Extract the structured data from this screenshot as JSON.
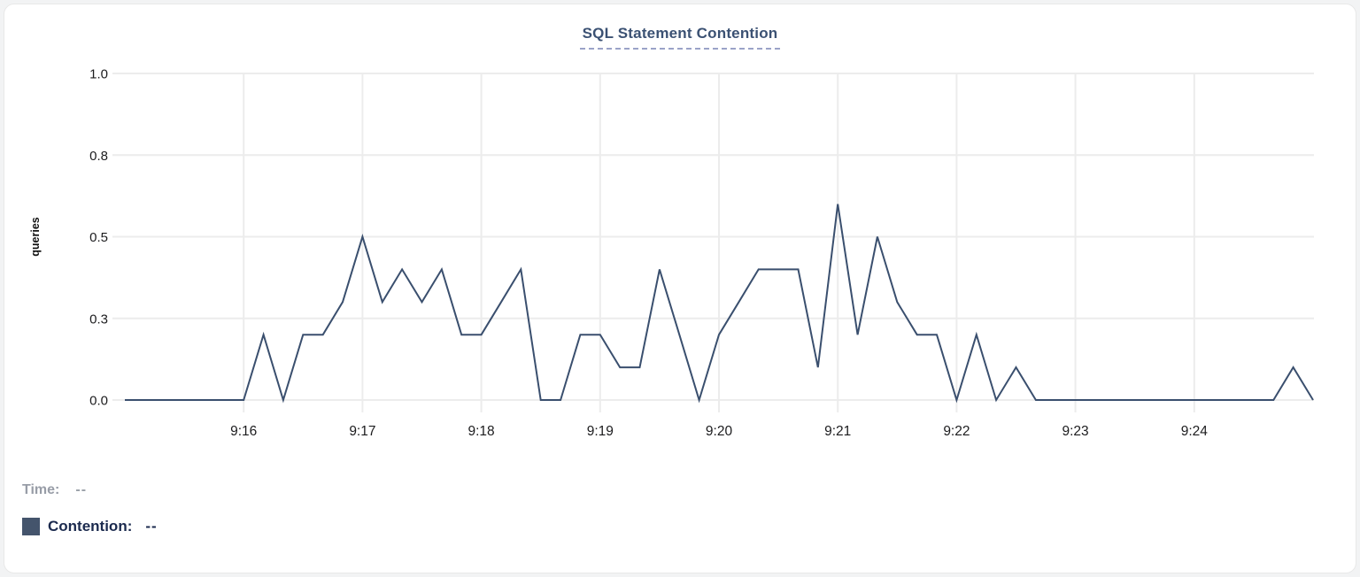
{
  "card": {
    "title": "SQL Statement Contention"
  },
  "tooltip": {
    "time_label": "Time:",
    "time_value": "--",
    "series_label": "Contention:",
    "series_value": "--"
  },
  "colors": {
    "line": "#3a4f6e",
    "swatch": "#44546c",
    "title": "#3b5173",
    "title_underline": "#9aa3c8",
    "grid": "#ececec",
    "axis_text": "#1c1c1e",
    "time_text": "#989da7",
    "series_text": "#1b2a4e",
    "card_border": "#e8e8e8"
  },
  "chart_data": {
    "type": "line",
    "title": "SQL Statement Contention",
    "xlabel": "",
    "ylabel": "queries",
    "ylim": [
      0,
      1.0
    ],
    "grid": true,
    "legend_position": "none",
    "yticks": {
      "values": [
        0,
        0.25,
        0.5,
        0.75,
        1.0
      ],
      "labels": [
        "0.0",
        "0.3",
        "0.5",
        "0.8",
        "1.0"
      ]
    },
    "xticks": {
      "labels": [
        "9:16",
        "9:17",
        "9:18",
        "9:19",
        "9:20",
        "9:21",
        "9:22",
        "9:23",
        "9:24"
      ],
      "minute_offsets": [
        60,
        120,
        180,
        240,
        300,
        360,
        420,
        480,
        540
      ]
    },
    "x_domain": {
      "start": "9:15:00",
      "end": "9:25:00",
      "interval_seconds": 10,
      "total_seconds": 600
    },
    "series": [
      {
        "name": "Contention",
        "unit": "queries",
        "start_time": "9:15:00",
        "interval_seconds": 10,
        "values": [
          0,
          0,
          0,
          0,
          0,
          0,
          0,
          0.2,
          0,
          0.2,
          0.2,
          0.3,
          0.5,
          0.3,
          0.4,
          0.3,
          0.4,
          0.2,
          0.2,
          0.3,
          0.4,
          0,
          0,
          0.2,
          0.2,
          0.1,
          0.1,
          0.4,
          0.2,
          0,
          0.2,
          0.3,
          0.4,
          0.4,
          0.4,
          0.1,
          0.6,
          0.2,
          0.5,
          0.3,
          0.2,
          0.2,
          0,
          0.2,
          0,
          0.1,
          0,
          0,
          0,
          0,
          0,
          0,
          0,
          0,
          0,
          0,
          0,
          0,
          0,
          0.1,
          0
        ]
      }
    ]
  }
}
